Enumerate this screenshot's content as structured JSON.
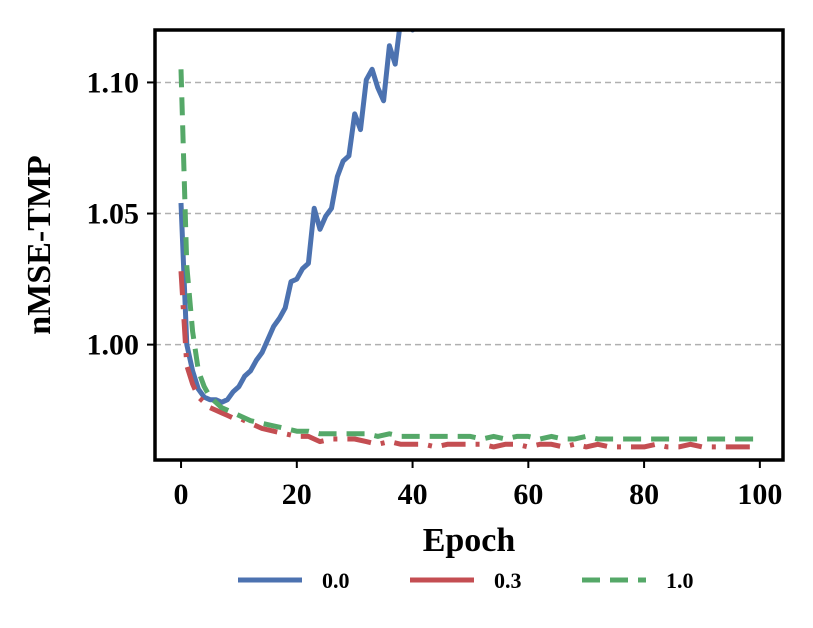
{
  "chart_data": {
    "type": "line",
    "xlabel": "Epoch",
    "ylabel": "nMSE-TMP",
    "xlim": [
      -4.5,
      104
    ],
    "ylim": [
      0.956,
      1.12
    ],
    "xticks": [
      0,
      20,
      40,
      60,
      80,
      100
    ],
    "xtick_labels": [
      "0",
      "20",
      "40",
      "60",
      "80",
      "100"
    ],
    "yticks": [
      1.0,
      1.05,
      1.1
    ],
    "ytick_labels": [
      "1.00",
      "1.05",
      "1.10"
    ],
    "grid": "horizontal-dashed",
    "legend_position": "bottom-center",
    "series": [
      {
        "name": "0.0",
        "color": "#4c72b0",
        "style": "solid",
        "x": [
          0,
          1,
          2,
          3,
          4,
          5,
          6,
          7,
          8,
          9,
          10,
          11,
          12,
          13,
          14,
          15,
          16,
          17,
          18,
          19,
          20,
          21,
          22,
          23,
          24,
          25,
          26,
          27,
          28,
          29,
          30,
          31,
          32,
          33,
          34,
          35,
          36,
          37,
          38,
          39,
          40,
          41
        ],
        "y": [
          1.054,
          1.0,
          0.99,
          0.983,
          0.98,
          0.979,
          0.979,
          0.978,
          0.979,
          0.982,
          0.984,
          0.988,
          0.99,
          0.994,
          0.997,
          1.002,
          1.007,
          1.01,
          1.014,
          1.024,
          1.025,
          1.029,
          1.031,
          1.052,
          1.044,
          1.049,
          1.052,
          1.064,
          1.07,
          1.072,
          1.088,
          1.082,
          1.101,
          1.105,
          1.098,
          1.093,
          1.114,
          1.107,
          1.125,
          1.135,
          1.12,
          1.125
        ]
      },
      {
        "name": "0.3",
        "color": "#c44e52",
        "style": "dashdot",
        "x": [
          0,
          1,
          2,
          3,
          4,
          5,
          6,
          7,
          8,
          9,
          10,
          12,
          14,
          16,
          18,
          20,
          22,
          24,
          26,
          28,
          30,
          32,
          34,
          36,
          38,
          40,
          42,
          44,
          46,
          48,
          50,
          52,
          54,
          56,
          58,
          60,
          62,
          64,
          66,
          68,
          70,
          72,
          74,
          76,
          78,
          80,
          82,
          84,
          86,
          88,
          90,
          92,
          94,
          96,
          98,
          100
        ],
        "y": [
          1.028,
          0.992,
          0.985,
          0.98,
          0.978,
          0.976,
          0.975,
          0.974,
          0.973,
          0.972,
          0.972,
          0.97,
          0.968,
          0.967,
          0.966,
          0.965,
          0.965,
          0.963,
          0.964,
          0.964,
          0.964,
          0.963,
          0.962,
          0.963,
          0.962,
          0.962,
          0.962,
          0.961,
          0.962,
          0.962,
          0.962,
          0.962,
          0.961,
          0.962,
          0.962,
          0.961,
          0.962,
          0.962,
          0.961,
          0.962,
          0.961,
          0.962,
          0.961,
          0.961,
          0.961,
          0.961,
          0.962,
          0.961,
          0.961,
          0.962,
          0.961,
          0.961,
          0.961,
          0.961,
          0.961,
          0.961
        ]
      },
      {
        "name": "1.0",
        "color": "#55a868",
        "style": "dashed",
        "x": [
          0,
          1,
          2,
          3,
          4,
          5,
          6,
          7,
          8,
          9,
          10,
          12,
          14,
          16,
          18,
          20,
          22,
          24,
          26,
          28,
          30,
          32,
          34,
          36,
          38,
          40,
          42,
          44,
          46,
          48,
          50,
          52,
          54,
          56,
          58,
          60,
          62,
          64,
          66,
          68,
          70,
          72,
          74,
          76,
          78,
          80,
          82,
          84,
          86,
          88,
          90,
          92,
          94,
          96,
          98,
          100
        ],
        "y": [
          1.105,
          1.03,
          1.005,
          0.99,
          0.984,
          0.98,
          0.978,
          0.976,
          0.975,
          0.974,
          0.973,
          0.971,
          0.97,
          0.969,
          0.968,
          0.967,
          0.967,
          0.966,
          0.966,
          0.966,
          0.966,
          0.966,
          0.965,
          0.966,
          0.965,
          0.965,
          0.965,
          0.965,
          0.965,
          0.965,
          0.965,
          0.964,
          0.965,
          0.964,
          0.965,
          0.965,
          0.964,
          0.965,
          0.964,
          0.964,
          0.965,
          0.964,
          0.964,
          0.964,
          0.964,
          0.964,
          0.964,
          0.964,
          0.964,
          0.964,
          0.964,
          0.964,
          0.964,
          0.964,
          0.964,
          0.964
        ]
      }
    ]
  }
}
